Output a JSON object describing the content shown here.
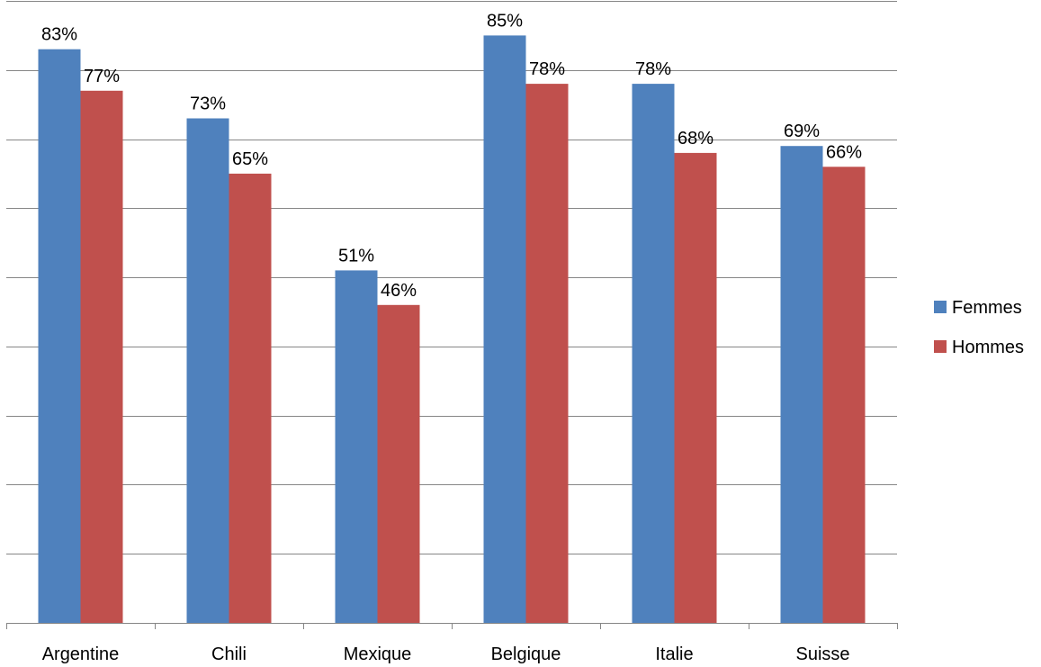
{
  "chart_data": {
    "type": "bar",
    "categories": [
      "Argentine",
      "Chili",
      "Mexique",
      "Belgique",
      "Italie",
      "Suisse"
    ],
    "series": [
      {
        "name": "Femmes",
        "color": "#4F81BD",
        "values": [
          83,
          73,
          51,
          85,
          78,
          69
        ],
        "labels": [
          "83%",
          "73%",
          "51%",
          "85%",
          "78%",
          "69%"
        ]
      },
      {
        "name": "Hommes",
        "color": "#C0504D",
        "values": [
          77,
          65,
          46,
          78,
          68,
          66
        ],
        "labels": [
          "77%",
          "65%",
          "46%",
          "78%",
          "68%",
          "66%"
        ]
      }
    ],
    "ylim": [
      0,
      90
    ],
    "y_grid_step": 10,
    "grid": true,
    "y_axis_labels": false,
    "legend_position": "right",
    "title": "",
    "xlabel": "",
    "ylabel": ""
  }
}
